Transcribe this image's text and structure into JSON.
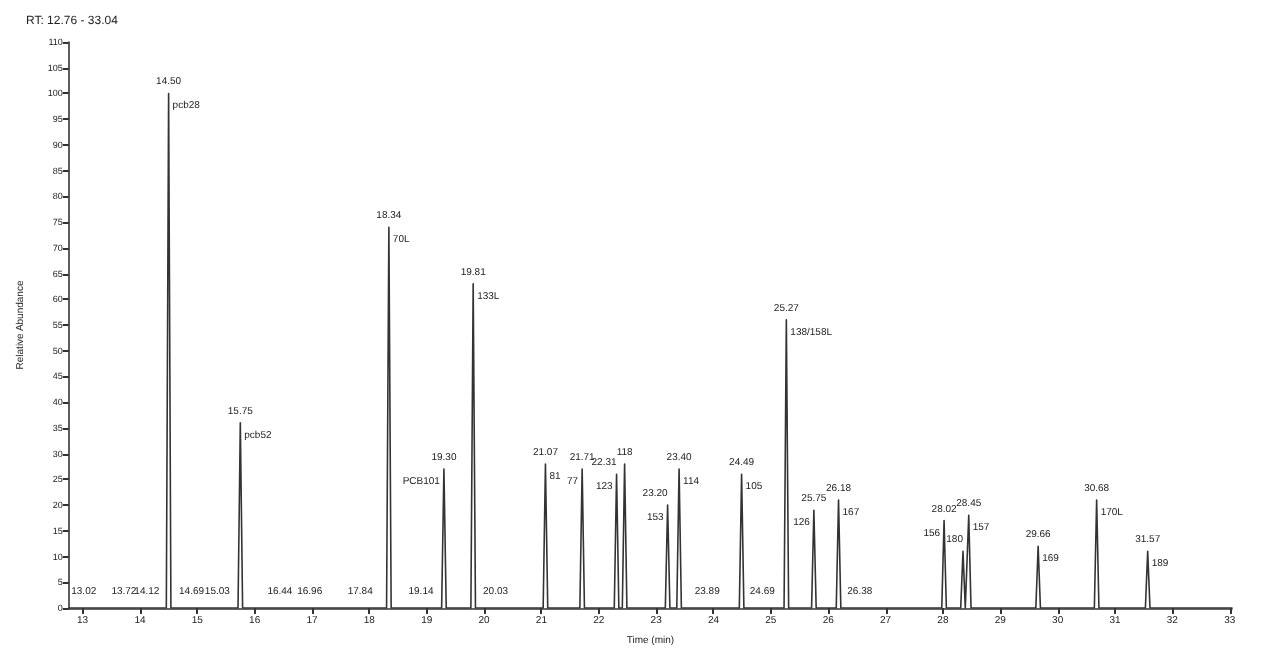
{
  "chart_data": {
    "type": "line",
    "title": "RT: 12.76 - 33.04",
    "xlabel": "Time (min)",
    "ylabel": "Relative Abundance",
    "xlim": [
      12.76,
      33.04
    ],
    "xticks": [
      13,
      14,
      15,
      16,
      17,
      18,
      19,
      20,
      21,
      22,
      23,
      24,
      25,
      26,
      27,
      28,
      29,
      30,
      31,
      32,
      33
    ],
    "ylim": [
      0,
      110
    ],
    "yticks": [
      0,
      5,
      10,
      15,
      20,
      25,
      30,
      35,
      40,
      45,
      50,
      55,
      60,
      65,
      70,
      75,
      80,
      85,
      90,
      95,
      100,
      105,
      110
    ],
    "grid": false,
    "marker": "none",
    "line_style": "solid",
    "series": [
      {
        "color": "#333333",
        "x": [
          12.76,
          14.46,
          14.5,
          14.54,
          15.71,
          15.75,
          15.79,
          18.3,
          18.34,
          18.38,
          19.26,
          19.3,
          19.34,
          19.77,
          19.81,
          19.85,
          21.03,
          21.07,
          21.11,
          21.67,
          21.71,
          21.75,
          22.27,
          22.31,
          22.35,
          22.41,
          22.45,
          22.49,
          23.16,
          23.2,
          23.24,
          23.36,
          23.4,
          23.44,
          24.45,
          24.49,
          24.53,
          25.23,
          25.27,
          25.31,
          25.71,
          25.75,
          25.79,
          26.14,
          26.18,
          26.22,
          27.98,
          28.02,
          28.06,
          28.31,
          28.35,
          28.39,
          28.41,
          28.45,
          28.49,
          29.62,
          29.66,
          29.7,
          30.64,
          30.68,
          30.72,
          31.53,
          31.57,
          31.61,
          33.04
        ],
        "values": [
          0,
          0,
          100,
          0,
          0,
          36,
          0,
          0,
          74,
          0,
          0,
          27,
          0,
          0,
          63,
          0,
          0,
          28,
          0,
          0,
          27,
          0,
          0,
          26,
          0,
          0,
          28,
          0,
          0,
          20,
          0,
          0,
          27,
          0,
          0,
          26,
          0,
          0,
          56,
          0,
          0,
          19,
          0,
          0,
          21,
          0,
          0,
          17,
          0,
          0,
          11,
          0,
          0,
          18,
          0,
          0,
          12,
          0,
          0,
          21,
          0,
          0,
          11,
          0,
          0
        ]
      }
    ],
    "annotations": [
      {
        "text": "14.50",
        "x": 14.5,
        "y": 100
      },
      {
        "text": "pcb28",
        "x": 14.5,
        "y": 100
      },
      {
        "text": "15.75",
        "x": 15.75,
        "y": 36
      },
      {
        "text": "pcb52",
        "x": 15.75,
        "y": 36
      },
      {
        "text": "18.34",
        "x": 18.34,
        "y": 74
      },
      {
        "text": "70L",
        "x": 18.34,
        "y": 74
      },
      {
        "text": "19.30",
        "x": 19.3,
        "y": 27
      },
      {
        "text": "PCB101",
        "x": 19.3,
        "y": 27
      },
      {
        "text": "19.81",
        "x": 19.81,
        "y": 63
      },
      {
        "text": "133L",
        "x": 19.81,
        "y": 63
      },
      {
        "text": "21.07",
        "x": 21.07,
        "y": 28
      },
      {
        "text": "81",
        "x": 21.07,
        "y": 28
      },
      {
        "text": "21.71",
        "x": 21.71,
        "y": 27
      },
      {
        "text": "77",
        "x": 21.71,
        "y": 27
      },
      {
        "text": "22.31",
        "x": 22.31,
        "y": 26
      },
      {
        "text": "123",
        "x": 22.31,
        "y": 26
      },
      {
        "text": "118",
        "x": 22.45,
        "y": 28
      },
      {
        "text": "23.20",
        "x": 23.2,
        "y": 20
      },
      {
        "text": "153",
        "x": 23.2,
        "y": 20
      },
      {
        "text": "23.40",
        "x": 23.4,
        "y": 27
      },
      {
        "text": "114",
        "x": 23.4,
        "y": 27
      },
      {
        "text": "24.49",
        "x": 24.49,
        "y": 26
      },
      {
        "text": "105",
        "x": 24.49,
        "y": 26
      },
      {
        "text": "25.27",
        "x": 25.27,
        "y": 56
      },
      {
        "text": "138/158L",
        "x": 25.27,
        "y": 56
      },
      {
        "text": "25.75",
        "x": 25.75,
        "y": 19
      },
      {
        "text": "126",
        "x": 25.75,
        "y": 19
      },
      {
        "text": "26.18",
        "x": 26.18,
        "y": 21
      },
      {
        "text": "167",
        "x": 26.18,
        "y": 21
      },
      {
        "text": "28.02",
        "x": 28.02,
        "y": 17
      },
      {
        "text": "156",
        "x": 28.02,
        "y": 17
      },
      {
        "text": "180",
        "x": 28.35,
        "y": 11
      },
      {
        "text": "28.45",
        "x": 28.45,
        "y": 18
      },
      {
        "text": "157",
        "x": 28.45,
        "y": 18
      },
      {
        "text": "29.66",
        "x": 29.66,
        "y": 12
      },
      {
        "text": "169",
        "x": 29.66,
        "y": 12
      },
      {
        "text": "30.68",
        "x": 30.68,
        "y": 21
      },
      {
        "text": "170L",
        "x": 30.68,
        "y": 21
      },
      {
        "text": "31.57",
        "x": 31.57,
        "y": 11
      },
      {
        "text": "189",
        "x": 31.57,
        "y": 11
      },
      {
        "text": "13.02",
        "x": 13.02,
        "y": 1
      },
      {
        "text": "13.72",
        "x": 13.72,
        "y": 1
      },
      {
        "text": "14.12",
        "x": 14.12,
        "y": 1
      },
      {
        "text": "14.69",
        "x": 14.9,
        "y": 1
      },
      {
        "text": "15.03",
        "x": 15.35,
        "y": 1
      },
      {
        "text": "16.44",
        "x": 16.44,
        "y": 1
      },
      {
        "text": "16.96",
        "x": 16.96,
        "y": 1
      },
      {
        "text": "17.84",
        "x": 17.84,
        "y": 1
      },
      {
        "text": "19.14",
        "x": 18.9,
        "y": 1
      },
      {
        "text": "20.03",
        "x": 20.2,
        "y": 1
      },
      {
        "text": "23.89",
        "x": 23.89,
        "y": 1
      },
      {
        "text": "24.69",
        "x": 24.85,
        "y": 1
      },
      {
        "text": "26.38",
        "x": 26.55,
        "y": 1
      }
    ]
  }
}
